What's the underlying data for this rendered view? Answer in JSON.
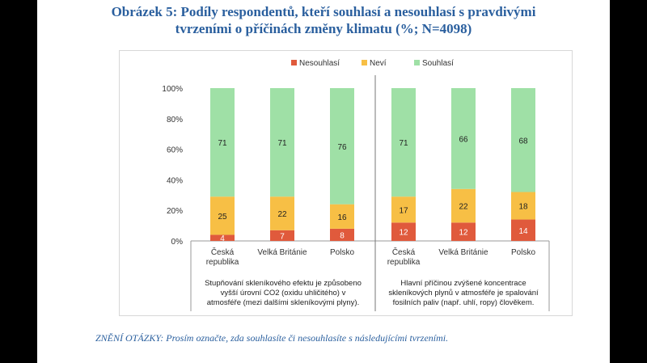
{
  "figure": {
    "title_line1": "Obrázek 5: Podíly respondentů, kteří souhlasí a nesouhlasí s pravdivými",
    "title_line2": "tvrzeními o příčinách změny klimatu (%; N=4098)",
    "question_note": "ZNĚNÍ OTÁZKY: Prosím označte, zda souhlasíte či nesouhlasíte s následujícími tvrzeními."
  },
  "chart_data": {
    "type": "bar",
    "stacked": true,
    "percent": true,
    "ylim": [
      0,
      100
    ],
    "yticks": [
      "0%",
      "20%",
      "40%",
      "60%",
      "80%",
      "100%"
    ],
    "legend_position": "top",
    "colors": {
      "Nesouhlasí": "#e05a3c",
      "Neví": "#f7bf45",
      "Souhlasí": "#9fe0a6"
    },
    "groups": [
      {
        "caption": "Stupňování skleníkového efektu je způsobeno vyšší úrovní CO2 (oxidu uhličitého) v atmosféře (mezi dalšími skleníkovými plyny).",
        "categories": [
          "Česká republika",
          "Velká Británie",
          "Polsko"
        ],
        "series": [
          {
            "name": "Nesouhlasí",
            "values": [
              4,
              7,
              8
            ]
          },
          {
            "name": "Neví",
            "values": [
              25,
              22,
              16
            ]
          },
          {
            "name": "Souhlasí",
            "values": [
              71,
              71,
              76
            ]
          }
        ]
      },
      {
        "caption": "Hlavní příčinou zvýšené koncentrace skleníkových plynů v atmosféře je spalování fosilních paliv (např. uhlí, ropy) člověkem.",
        "categories": [
          "Česká republika",
          "Velká Británie",
          "Polsko"
        ],
        "series": [
          {
            "name": "Nesouhlasí",
            "values": [
              12,
              12,
              14
            ]
          },
          {
            "name": "Neví",
            "values": [
              17,
              22,
              18
            ]
          },
          {
            "name": "Souhlasí",
            "values": [
              71,
              66,
              68
            ]
          }
        ]
      }
    ]
  }
}
